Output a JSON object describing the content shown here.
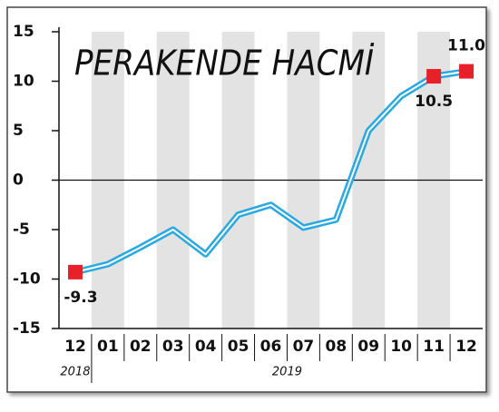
{
  "chart_data": {
    "type": "line",
    "title": "PERAKENDE HACMİ",
    "categories": [
      "12",
      "01",
      "02",
      "03",
      "04",
      "05",
      "06",
      "07",
      "08",
      "09",
      "10",
      "11",
      "12"
    ],
    "year_labels": [
      "2018",
      "2019"
    ],
    "series": [
      {
        "name": "Perakende hacmi",
        "color": "#29a9e1",
        "values": [
          -9.3,
          -8.5,
          -6.8,
          -5,
          -7.5,
          -3.5,
          -2.5,
          -4.8,
          -4,
          5,
          8.5,
          10.5,
          11.0
        ],
        "value_labels": [
          "-9.3",
          null,
          null,
          null,
          null,
          null,
          null,
          null,
          null,
          null,
          null,
          "10.5",
          "11.0"
        ],
        "marker_color": "#e8202a"
      }
    ],
    "ylim": [
      -15,
      15
    ],
    "yticks": [
      -15,
      -10,
      -5,
      0,
      5,
      10,
      15
    ],
    "band_color": "#e3e3e3"
  }
}
